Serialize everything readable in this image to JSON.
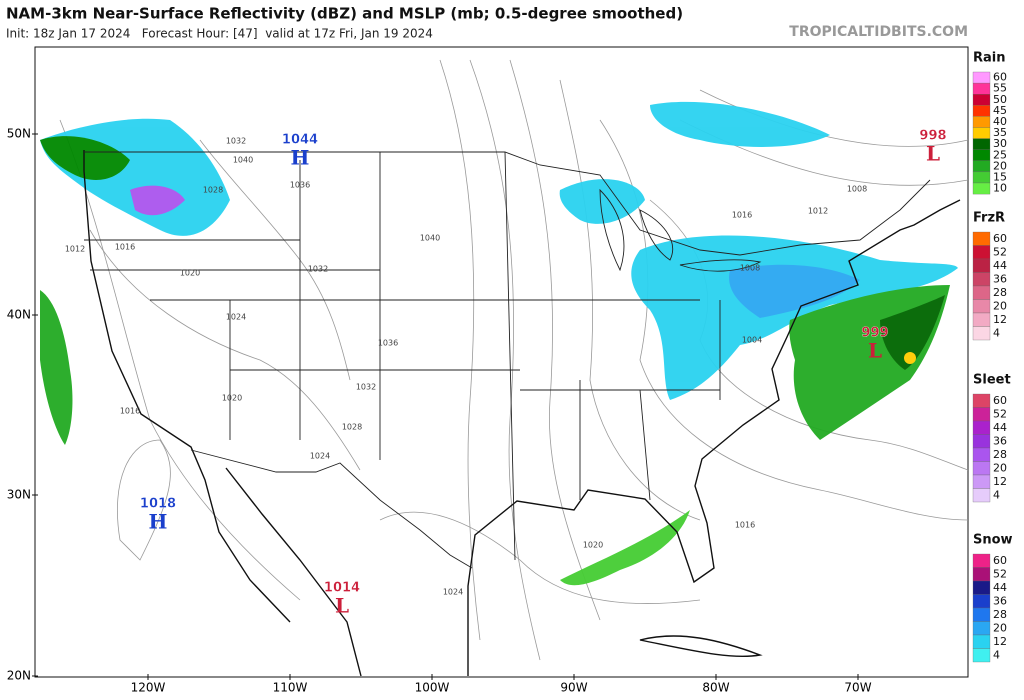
{
  "header": {
    "title": "NAM-3km Near-Surface Reflectivity (dBZ) and MSLP (mb; 0.5-degree smoothed)",
    "subtitle": "Init: 18z Jan 17 2024   Forecast Hour: [47]  valid at 17z Fri, Jan 19 2024",
    "credit": "TROPICALTIDBITS.COM"
  },
  "map": {
    "lat_labels": [
      "50N",
      "40N",
      "30N",
      "20N"
    ],
    "lon_labels": [
      "120W",
      "110W",
      "100W",
      "90W",
      "80W",
      "70W"
    ],
    "pressure_centers": [
      {
        "symbol": "H",
        "value": "1044",
        "color": "#1a3fcc"
      },
      {
        "symbol": "H",
        "value": "1018",
        "color": "#1a3fcc"
      },
      {
        "symbol": "L",
        "value": "1014",
        "color": "#cc1f3a"
      },
      {
        "symbol": "L",
        "value": "998",
        "color": "#cc1f3a"
      },
      {
        "symbol": "L",
        "value": "999",
        "color": "#cc1f3a"
      }
    ],
    "isobar_labels": [
      "1032",
      "1040",
      "1036",
      "1028",
      "1020",
      "1016",
      "1012",
      "1024",
      "1040",
      "1032",
      "1036",
      "1032",
      "1024",
      "1020",
      "1028",
      "1016",
      "1008",
      "1004",
      "1016",
      "1012",
      "1008",
      "1020",
      "1016",
      "1024"
    ]
  },
  "legend": [
    {
      "name": "Rain",
      "ticks": [
        "60",
        "55",
        "50",
        "45",
        "40",
        "35",
        "30",
        "25",
        "20",
        "15",
        "10"
      ],
      "colors": [
        "#ff99ff",
        "#ff3399",
        "#cc0033",
        "#ff3300",
        "#ff9900",
        "#ffcc00",
        "#006600",
        "#008800",
        "#22aa22",
        "#44cc33",
        "#66ee44"
      ]
    },
    {
      "name": "FrzR",
      "ticks": [
        "60",
        "52",
        "44",
        "36",
        "28",
        "20",
        "12",
        "4"
      ],
      "colors": [
        "#ff6a00",
        "#cc1133",
        "#bb2244",
        "#cc4466",
        "#dd6688",
        "#e888a8",
        "#f2aac4",
        "#fbd6e4"
      ]
    },
    {
      "name": "Sleet",
      "ticks": [
        "60",
        "52",
        "44",
        "36",
        "28",
        "20",
        "12",
        "4"
      ],
      "colors": [
        "#dd4466",
        "#cc2299",
        "#aa22cc",
        "#9933dd",
        "#aa55ee",
        "#bb77f2",
        "#cc99f6",
        "#e6ccfb"
      ]
    },
    {
      "name": "Snow",
      "ticks": [
        "60",
        "52",
        "44",
        "36",
        "28",
        "20",
        "12",
        "4"
      ],
      "colors": [
        "#ee2288",
        "#aa1177",
        "#1a1a88",
        "#1a3fcc",
        "#1f77ee",
        "#2aa7f2",
        "#2ad2f0",
        "#40f0f0"
      ]
    }
  ]
}
